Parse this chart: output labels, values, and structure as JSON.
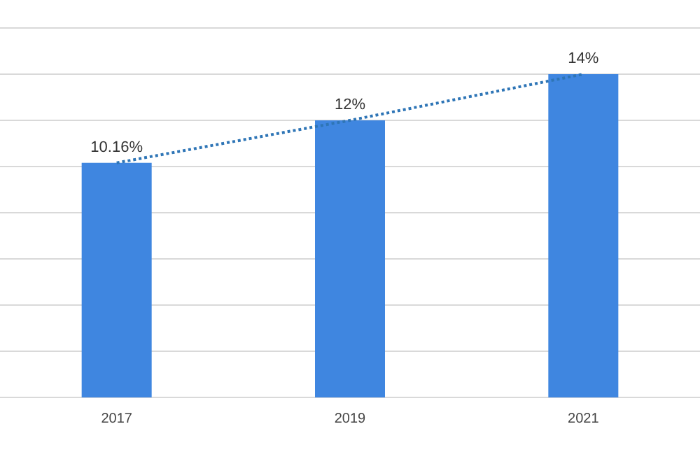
{
  "chart_data": {
    "type": "bar",
    "categories": [
      "2017",
      "2019",
      "2021"
    ],
    "series": [
      {
        "color": "#3f86e0",
        "values": [
          10.16,
          12,
          14
        ],
        "value_labels": [
          "10.16%",
          "12%",
          "14%"
        ]
      },
      {
        "type": "line",
        "color": "#2e75b6",
        "values": [
          10.16,
          12,
          14
        ],
        "line_style": "dotted",
        "marker": "none"
      }
    ],
    "ylim": [
      0,
      16
    ],
    "yticks": [
      {
        "value": 0,
        "label": null
      },
      {
        "value": 2,
        "label": null
      },
      {
        "value": 4,
        "label": null
      },
      {
        "value": 6,
        "label": null
      },
      {
        "value": 8,
        "label": null
      },
      {
        "value": 10,
        "label": null
      },
      {
        "value": 12,
        "label": null
      },
      {
        "value": 14,
        "label": null
      },
      {
        "value": 16,
        "label": null
      }
    ],
    "grid": "y",
    "tick_labels": "x"
  }
}
